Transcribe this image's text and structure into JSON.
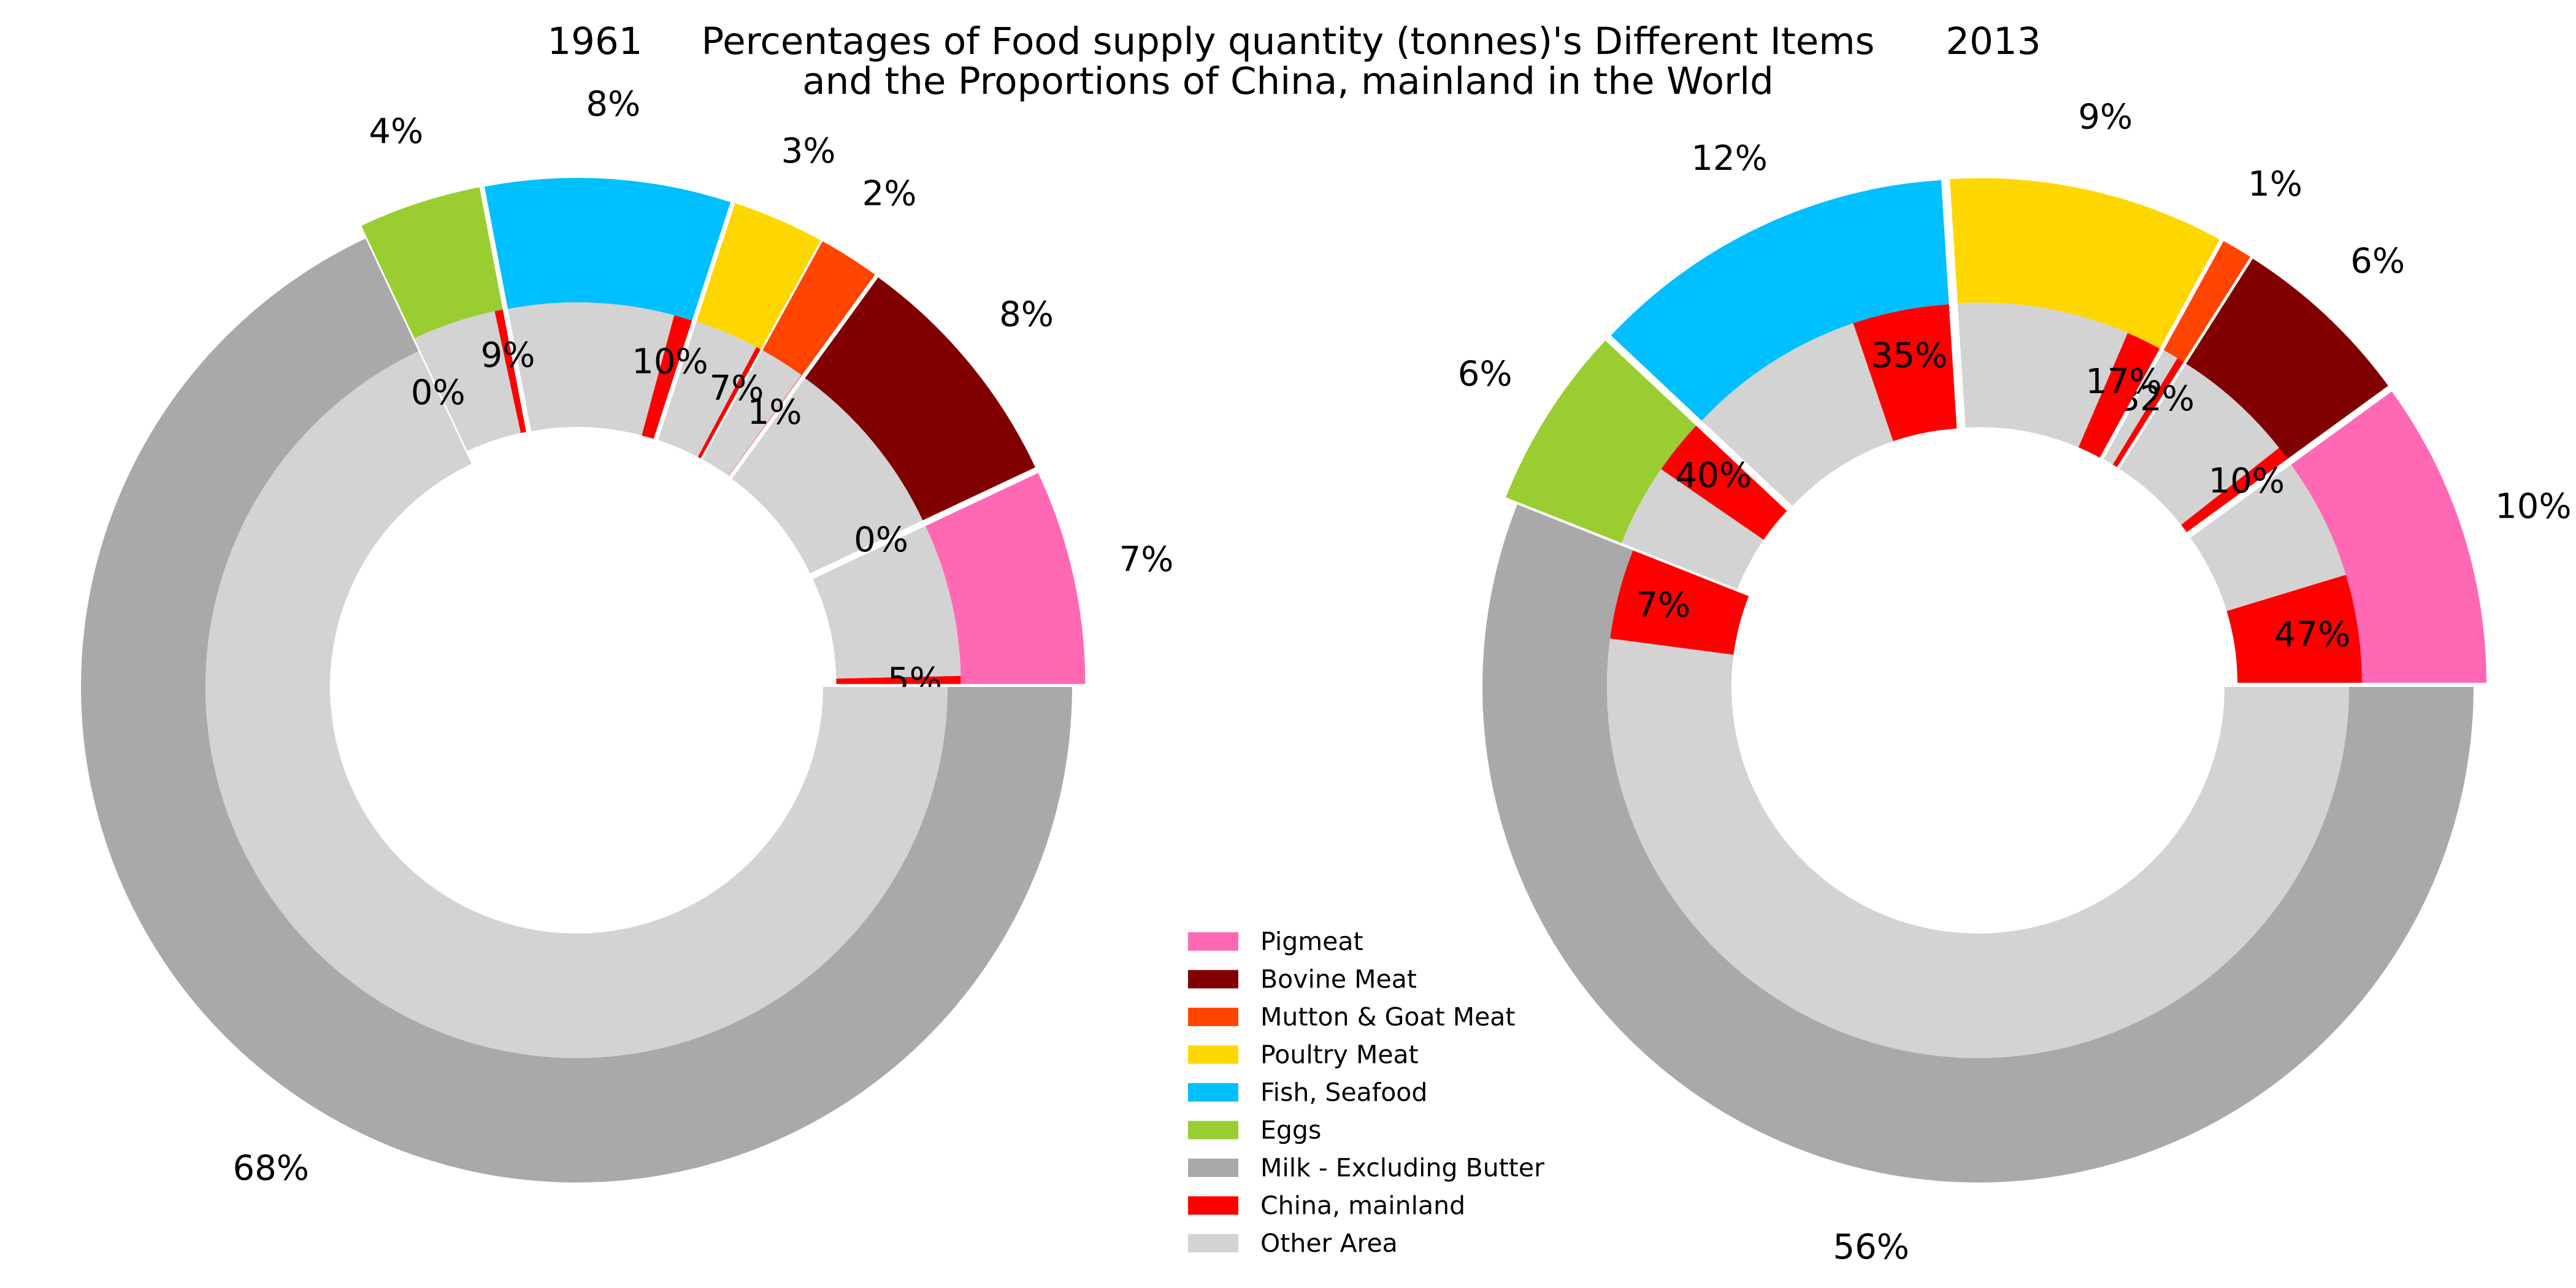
{
  "chart_data": {
    "type": "pie",
    "title": "Percentages of Food supply quantity (tonnes)'s Different Items\nand the Proportions of China, mainland in the World",
    "title_lines": [
      "Percentages of Food supply quantity (tonnes)'s Different Items",
      "and the Proportions of China, mainland in the World"
    ],
    "items": [
      "Pigmeat",
      "Bovine Meat",
      "Mutton & Goat Meat",
      "Poultry Meat",
      "Fish, Seafood",
      "Eggs",
      "Milk - Excluding Butter"
    ],
    "legend": [
      "Pigmeat",
      "Bovine Meat",
      "Mutton & Goat Meat",
      "Poultry Meat",
      "Fish, Seafood",
      "Eggs",
      "Milk - Excluding Butter",
      "China, mainland",
      "Other Area"
    ],
    "colors": {
      "Pigmeat": "#ff69b4",
      "Bovine Meat": "#800000",
      "Mutton & Goat Meat": "#ff4500",
      "Poultry Meat": "#ffd700",
      "Fish, Seafood": "#00bfff",
      "Eggs": "#9acd32",
      "Milk - Excluding Butter": "#a9a9a9",
      "China, mainland": "#ff0000",
      "Other Area": "#d3d3d3"
    },
    "charts": [
      {
        "year": "1961",
        "outer_values": [
          7,
          8,
          2,
          3,
          8,
          4,
          68
        ],
        "outer_labels": [
          "7%",
          "8%",
          "2%",
          "3%",
          "8%",
          "4%",
          "68%"
        ],
        "china_share": [
          5,
          0,
          1,
          7,
          10,
          9,
          0
        ],
        "china_labels": [
          "5%",
          "0%",
          "1%",
          "7%",
          "10%",
          "9%",
          "0%"
        ]
      },
      {
        "year": "2013",
        "outer_values": [
          10,
          6,
          1,
          9,
          12,
          6,
          56
        ],
        "outer_labels": [
          "10%",
          "6%",
          "1%",
          "9%",
          "12%",
          "6%",
          "56%"
        ],
        "china_share": [
          47,
          10,
          32,
          17,
          35,
          40,
          7
        ],
        "china_labels": [
          "47%",
          "10%",
          "32%",
          "17%",
          "35%",
          "40%",
          "7%"
        ]
      }
    ]
  }
}
